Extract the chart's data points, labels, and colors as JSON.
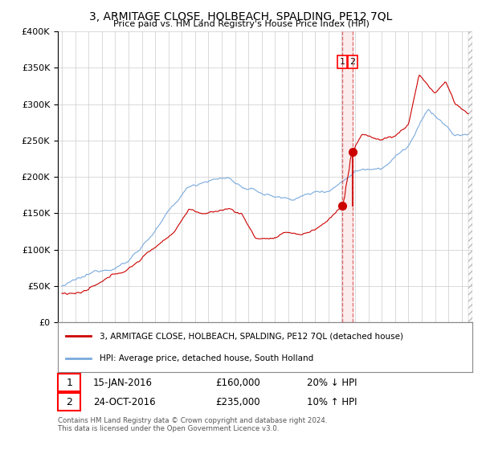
{
  "title": "3, ARMITAGE CLOSE, HOLBEACH, SPALDING, PE12 7QL",
  "subtitle": "Price paid vs. HM Land Registry's House Price Index (HPI)",
  "red_label": "3, ARMITAGE CLOSE, HOLBEACH, SPALDING, PE12 7QL (detached house)",
  "blue_label": "HPI: Average price, detached house, South Holland",
  "annotation1_date": "15-JAN-2016",
  "annotation1_price": "£160,000",
  "annotation1_hpi": "20% ↓ HPI",
  "annotation2_date": "24-OCT-2016",
  "annotation2_price": "£235,000",
  "annotation2_hpi": "10% ↑ HPI",
  "footer": "Contains HM Land Registry data © Crown copyright and database right 2024.\nThis data is licensed under the Open Government Licence v3.0.",
  "ylim": [
    0,
    400000
  ],
  "yticks": [
    0,
    50000,
    100000,
    150000,
    200000,
    250000,
    300000,
    350000,
    400000
  ],
  "background_color": "#ffffff",
  "grid_color": "#cccccc",
  "red_color": "#cc0000",
  "blue_color": "#7aaadd",
  "vline_color": "#cc0000",
  "xlim_start": 1995.0,
  "xlim_end": 2025.5,
  "p1_year": 2016.04,
  "p2_year": 2016.82,
  "p1_y": 160000,
  "p2_y": 235000
}
